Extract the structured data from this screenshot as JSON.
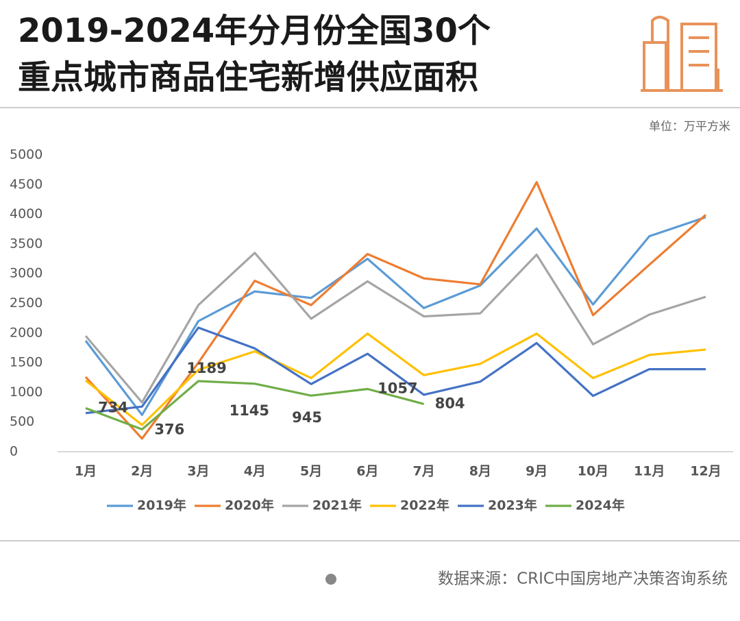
{
  "chart_data": {
    "type": "line",
    "title": [
      "2019-2024年分月份全国30个",
      "重点城市商品住宅新增供应面积"
    ],
    "unit": "单位：万平方米",
    "source": "数据来源：CRIC中国房地产决策咨询系统",
    "categories": [
      "1月",
      "2月",
      "3月",
      "4月",
      "5月",
      "6月",
      "7月",
      "8月",
      "9月",
      "10月",
      "11月",
      "12月"
    ],
    "ylim": [
      0,
      5000
    ],
    "yticks": [
      0,
      500,
      1000,
      1500,
      2000,
      2500,
      3000,
      3500,
      4000,
      4500,
      5000
    ],
    "grid": false,
    "legend": "bottom",
    "series": [
      {
        "name": "2019年",
        "color": "#5b9bd5",
        "values": [
          1870,
          620,
          2200,
          2700,
          2590,
          3250,
          2420,
          2800,
          3760,
          2480,
          3630,
          3950
        ]
      },
      {
        "name": "2020年",
        "color": "#ed7d31",
        "values": [
          1260,
          220,
          1500,
          2880,
          2470,
          3330,
          2920,
          2820,
          4540,
          2300,
          3150,
          3990
        ]
      },
      {
        "name": "2021年",
        "color": "#a5a5a5",
        "values": [
          1950,
          830,
          2470,
          3350,
          2240,
          2870,
          2280,
          2330,
          3320,
          1810,
          2310,
          2610
        ]
      },
      {
        "name": "2022年",
        "color": "#ffc000",
        "values": [
          1200,
          450,
          1380,
          1690,
          1240,
          1990,
          1290,
          1480,
          1990,
          1240,
          1630,
          1720
        ]
      },
      {
        "name": "2023年",
        "color": "#4472c4",
        "values": [
          650,
          760,
          2090,
          1740,
          1140,
          1650,
          960,
          1180,
          1830,
          940,
          1390,
          1390
        ]
      },
      {
        "name": "2024年",
        "color": "#70ad47",
        "values": [
          734,
          376,
          1189,
          1145,
          945,
          1057,
          804,
          null,
          null,
          null,
          null,
          null
        ],
        "data_labels": true
      }
    ]
  }
}
